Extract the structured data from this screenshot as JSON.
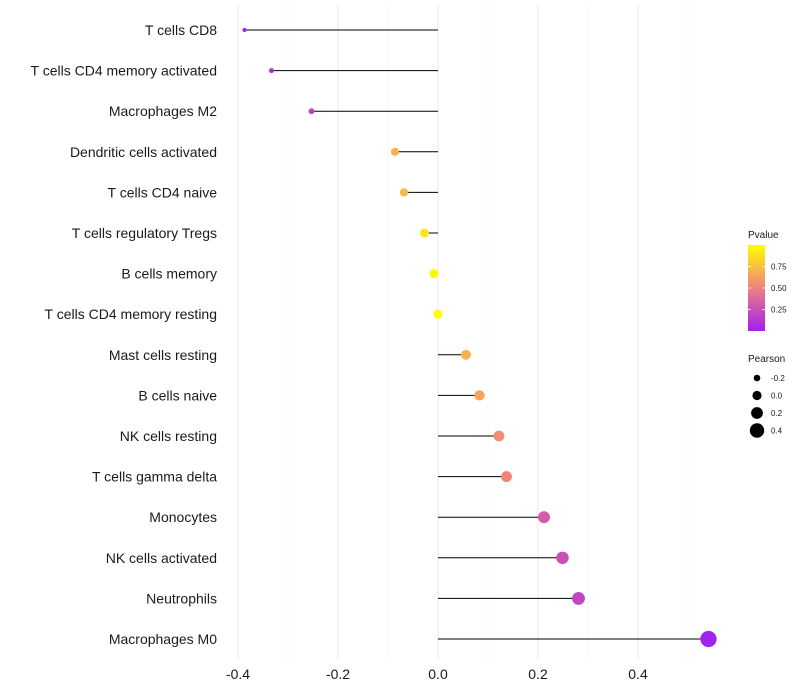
{
  "chart_data": {
    "type": "lollipop",
    "title": "",
    "xlabel": "",
    "ylabel": "",
    "xlim": [
      -0.42,
      0.555
    ],
    "xticks": [
      -0.4,
      -0.2,
      0.0,
      0.2,
      0.4
    ],
    "xtick_labels": [
      "-0.4",
      "-0.2",
      "0.0",
      "0.2",
      "0.4"
    ],
    "grid": true,
    "categories": [
      "T cells CD8",
      "T cells CD4 memory activated",
      "Macrophages M2",
      "Dendritic cells activated",
      "T cells CD4 naive",
      "T cells regulatory  Tregs",
      "B cells memory",
      "T cells CD4 memory resting",
      "Mast cells resting",
      "B cells naive",
      "NK cells resting",
      "T cells gamma delta",
      "Monocytes",
      "NK cells activated",
      "Neutrophils",
      "Macrophages M0"
    ],
    "values": [
      -0.387,
      -0.333,
      -0.253,
      -0.086,
      -0.068,
      -0.027,
      -0.008,
      0.0,
      0.056,
      0.083,
      0.122,
      0.137,
      0.212,
      0.249,
      0.281,
      0.541
    ],
    "pvalues": [
      0.02,
      0.05,
      0.18,
      0.7,
      0.72,
      0.88,
      0.97,
      0.99,
      0.7,
      0.64,
      0.55,
      0.52,
      0.32,
      0.25,
      0.2,
      0.01
    ],
    "legend_pvalue": {
      "title": "Pvalue",
      "ticks": [
        0.25,
        0.5,
        0.75
      ],
      "tick_labels": [
        "0.25",
        "0.50",
        "0.75"
      ],
      "range": [
        0.0,
        1.0
      ],
      "colors": [
        "#a020f0",
        "#f08080",
        "#ffff00"
      ],
      "placement": "right"
    },
    "legend_pearson": {
      "title": "Pearson",
      "values": [
        -0.2,
        0.0,
        0.2,
        0.4
      ],
      "labels": [
        "-0.2",
        "0.0",
        "0.2",
        "0.4"
      ],
      "placement": "right"
    }
  }
}
